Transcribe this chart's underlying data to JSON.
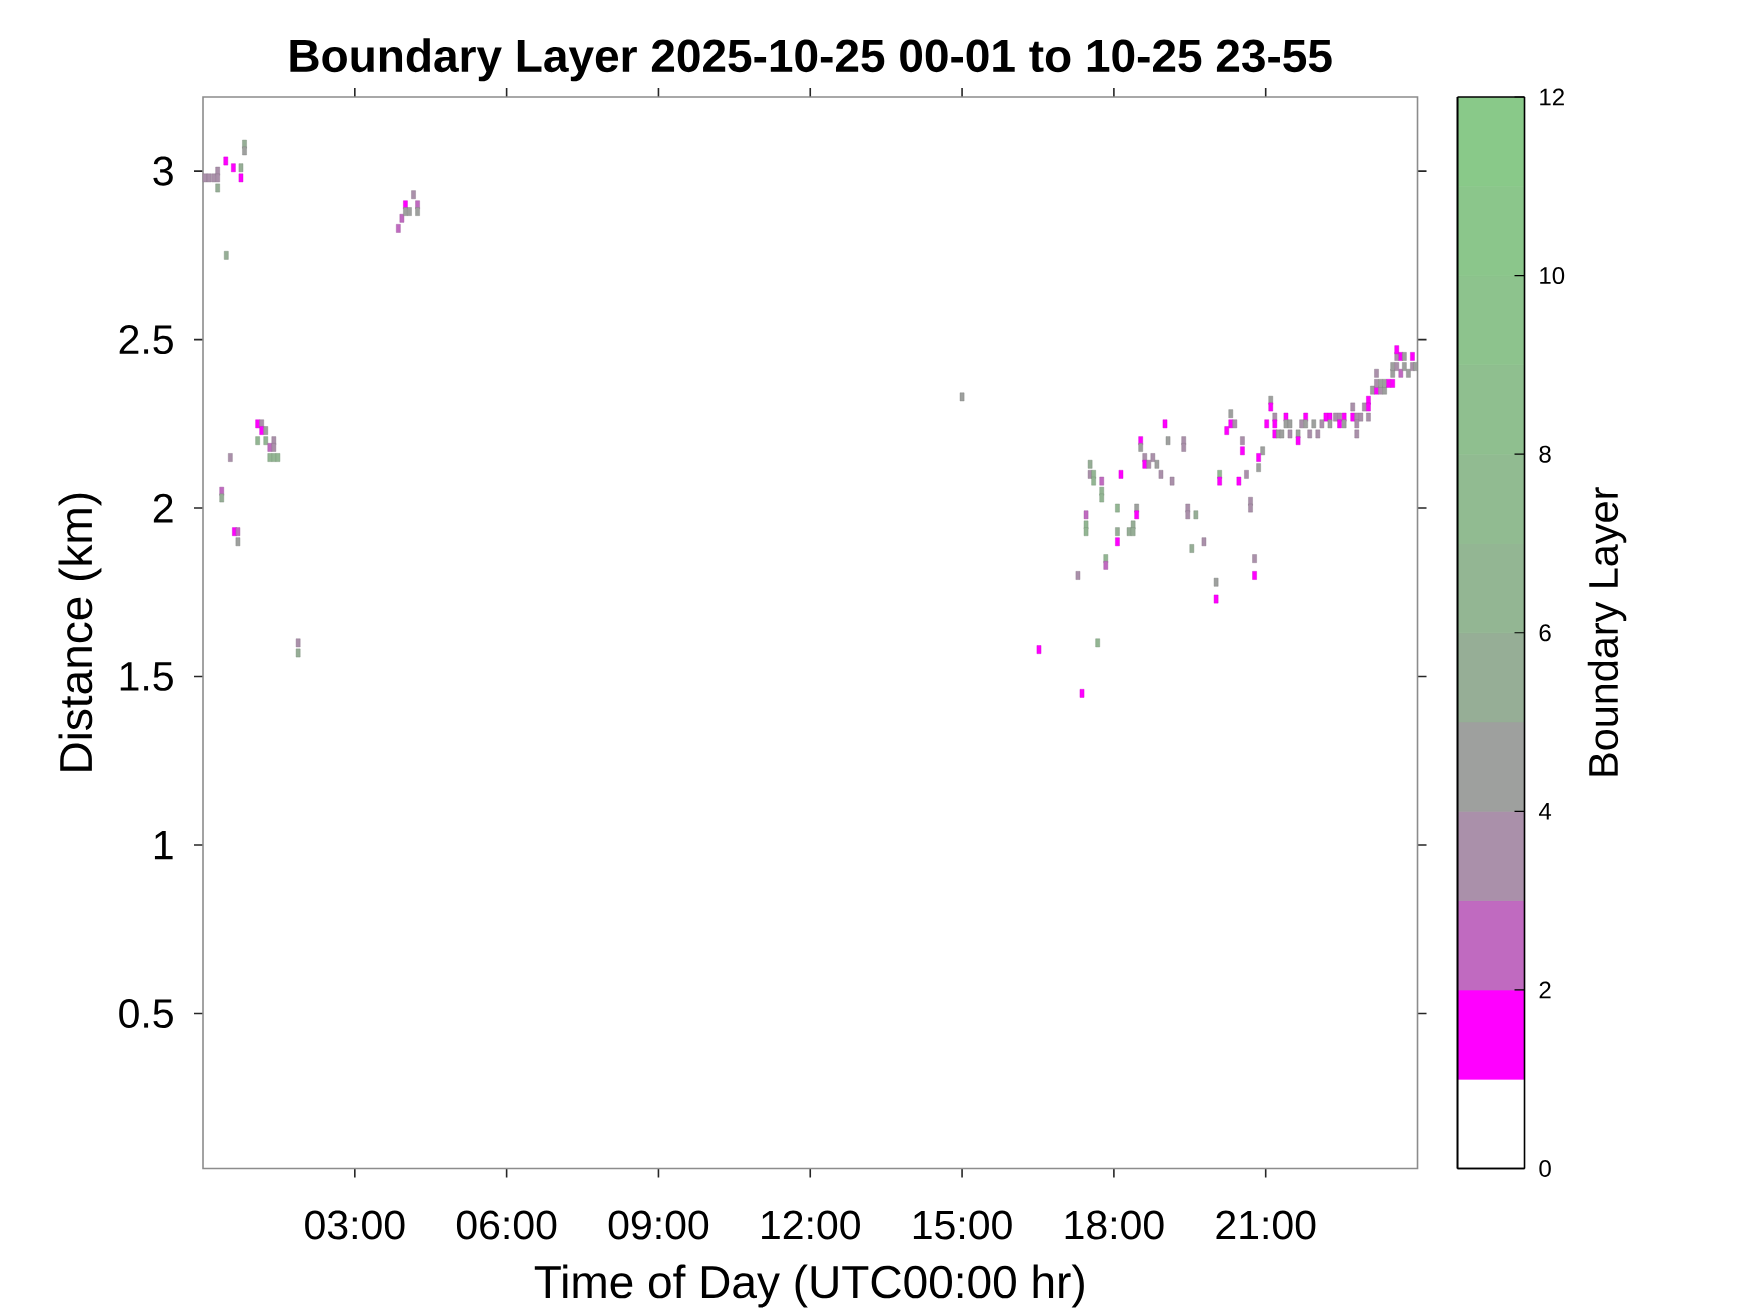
{
  "chart_data": {
    "type": "scatter",
    "title": "Boundary Layer 2025-10-25 00-01 to 10-25 23-55",
    "xlabel": "Time of Day (UTC00:00 hr)",
    "ylabel": "Distance (km)",
    "clabel": "Boundary Layer",
    "x": [
      0.04,
      0.12,
      0.21,
      0.29,
      0.29,
      0.29,
      0.45,
      0.6,
      0.75,
      0.75,
      0.82,
      0.82,
      0.46,
      3.86,
      3.93,
      4.0,
      4.0,
      4.08,
      4.16,
      4.24,
      4.24,
      1.08,
      1.16,
      1.16,
      1.24,
      1.08,
      1.24,
      1.4,
      1.32,
      1.4,
      1.32,
      1.4,
      1.48,
      0.54,
      0.37,
      0.37,
      0.62,
      0.69,
      0.69,
      1.88,
      1.88,
      15.0,
      19.01,
      20.31,
      20.31,
      20.39,
      20.23,
      18.53,
      18.53,
      19.07,
      19.38,
      19.38,
      18.61,
      18.77,
      18.61,
      18.69,
      18.85,
      18.93,
      19.15,
      17.53,
      17.53,
      17.6,
      17.6,
      18.14,
      17.76,
      17.76,
      17.76,
      20.09,
      20.09,
      20.47,
      18.07,
      18.45,
      18.45,
      19.46,
      19.46,
      19.62,
      17.45,
      17.45,
      17.45,
      18.38,
      18.3,
      18.38,
      18.07,
      18.07,
      19.78,
      19.54,
      17.84,
      17.84,
      17.29,
      20.02,
      20.02,
      17.68,
      16.52,
      17.37,
      20.54,
      20.54,
      20.94,
      20.86,
      20.86,
      20.62,
      20.7,
      20.7,
      20.78,
      20.78,
      21.1,
      23.03,
      21.1,
      22.72,
      22.95,
      23.03,
      21.18,
      21.4,
      21.79,
      22.19,
      22.27,
      22.38,
      22.46,
      22.55,
      22.72,
      22.8,
      22.88,
      23.03,
      21.02,
      21.18,
      21.4,
      21.48,
      21.71,
      21.79,
      21.95,
      22.11,
      22.27,
      22.46,
      22.55,
      22.8,
      21.18,
      21.25,
      21.32,
      21.48,
      21.64,
      21.87,
      22.03,
      22.8,
      21.64,
      23.11,
      23.19,
      23.27,
      23.35,
      23.19,
      23.27,
      23.35,
      23.43,
      23.51,
      23.19,
      23.51,
      23.67,
      23.82,
      23.51,
      23.59,
      23.74,
      23.9,
      23.96,
      23.59,
      23.67,
      23.74,
      23.9,
      23.59
    ],
    "values": [
      2.98,
      2.98,
      2.98,
      3.0,
      2.98,
      2.95,
      3.03,
      3.01,
      3.01,
      2.98,
      3.08,
      3.06,
      2.75,
      2.83,
      2.86,
      2.9,
      2.88,
      2.88,
      2.93,
      2.9,
      2.88,
      2.25,
      2.25,
      2.23,
      2.23,
      2.2,
      2.2,
      2.2,
      2.18,
      2.18,
      2.15,
      2.15,
      2.15,
      2.15,
      2.05,
      2.03,
      1.93,
      1.93,
      1.9,
      1.6,
      1.57,
      2.33,
      2.25,
      2.28,
      2.25,
      2.25,
      2.23,
      2.2,
      2.18,
      2.2,
      2.2,
      2.18,
      2.15,
      2.15,
      2.13,
      2.13,
      2.13,
      2.1,
      2.08,
      2.13,
      2.1,
      2.1,
      2.08,
      2.1,
      2.08,
      2.05,
      2.03,
      2.1,
      2.08,
      2.08,
      2.0,
      2.0,
      1.98,
      2.0,
      1.98,
      1.98,
      1.98,
      1.95,
      1.93,
      1.95,
      1.93,
      1.93,
      1.93,
      1.9,
      1.9,
      1.88,
      1.85,
      1.83,
      1.8,
      1.78,
      1.73,
      1.6,
      1.58,
      1.45,
      2.2,
      2.17,
      2.17,
      2.15,
      2.12,
      2.1,
      2.02,
      2.0,
      1.85,
      1.8,
      2.32,
      2.32,
      2.3,
      2.3,
      2.3,
      2.3,
      2.27,
      2.27,
      2.27,
      2.27,
      2.27,
      2.27,
      2.27,
      2.27,
      2.27,
      2.27,
      2.27,
      2.27,
      2.25,
      2.25,
      2.25,
      2.25,
      2.25,
      2.25,
      2.25,
      2.25,
      2.25,
      2.25,
      2.25,
      2.25,
      2.22,
      2.22,
      2.22,
      2.22,
      2.22,
      2.22,
      2.22,
      2.22,
      2.2,
      2.35,
      2.35,
      2.35,
      2.35,
      2.37,
      2.37,
      2.37,
      2.37,
      2.37,
      2.4,
      2.4,
      2.4,
      2.4,
      2.42,
      2.42,
      2.42,
      2.42,
      2.42,
      2.45,
      2.45,
      2.45,
      2.45,
      2.47
    ],
    "cvalues": [
      3.5,
      3.5,
      3.5,
      3.5,
      3.5,
      5.5,
      1.5,
      1.5,
      5.5,
      1.5,
      5.5,
      4.5,
      5.5,
      2.5,
      2.5,
      1.5,
      4.5,
      4.5,
      3.5,
      2.5,
      4.5,
      1.5,
      3.5,
      1.5,
      4.5,
      6.5,
      6.5,
      3.5,
      2.5,
      3.5,
      6.5,
      6.5,
      6.5,
      3.5,
      2.5,
      5.5,
      1.5,
      2.5,
      4.5,
      3.5,
      5.5,
      4.5,
      1.5,
      4.5,
      1.5,
      3.5,
      1.5,
      1.5,
      4.5,
      4.5,
      3.5,
      3.5,
      3.5,
      3.5,
      1.5,
      3.5,
      4.5,
      3.5,
      3.5,
      5.5,
      3.5,
      6.5,
      6.5,
      1.5,
      2.5,
      6.5,
      6.5,
      6.5,
      1.5,
      1.5,
      6.5,
      4.5,
      1.5,
      3.5,
      3.5,
      5.5,
      2.5,
      6.5,
      6.5,
      5.5,
      5.5,
      5.5,
      5.5,
      1.5,
      3.5,
      5.5,
      6.5,
      2.5,
      3.5,
      4.5,
      1.5,
      6.5,
      1.5,
      1.5,
      3.5,
      1.5,
      4.5,
      1.5,
      4.5,
      3.5,
      3.5,
      3.5,
      3.5,
      1.5,
      4.5,
      1.5,
      1.5,
      3.5,
      3.5,
      1.5,
      3.5,
      1.5,
      1.5,
      1.5,
      1.5,
      3.5,
      3.5,
      1.5,
      1.5,
      3.5,
      3.5,
      3.5,
      1.5,
      1.5,
      4.5,
      4.5,
      3.5,
      4.5,
      4.5,
      3.5,
      4.5,
      1.5,
      4.5,
      3.5,
      1.5,
      4.5,
      4.5,
      3.5,
      4.5,
      3.5,
      3.5,
      3.5,
      1.5,
      4.5,
      1.5,
      3.5,
      4.5,
      3.5,
      4.5,
      4.5,
      1.5,
      1.5,
      3.5,
      4.5,
      2.5,
      4.5,
      4.5,
      3.5,
      4.5,
      3.5,
      4.5,
      3.5,
      1.5,
      4.5,
      1.5,
      1.5
    ],
    "xlim": [
      0,
      24
    ],
    "ylim": [
      0.04,
      3.22
    ],
    "xticks": [
      {
        "value": 3,
        "label": "03:00"
      },
      {
        "value": 6,
        "label": "06:00"
      },
      {
        "value": 9,
        "label": "09:00"
      },
      {
        "value": 12,
        "label": "12:00"
      },
      {
        "value": 15,
        "label": "15:00"
      },
      {
        "value": 18,
        "label": "18:00"
      },
      {
        "value": 21,
        "label": "21:00"
      }
    ],
    "yticks": [
      0.5,
      1,
      1.5,
      2,
      2.5,
      3
    ],
    "clim": [
      0,
      12
    ],
    "cticks": [
      0,
      2,
      4,
      6,
      8,
      10,
      12
    ],
    "marker": "square"
  }
}
